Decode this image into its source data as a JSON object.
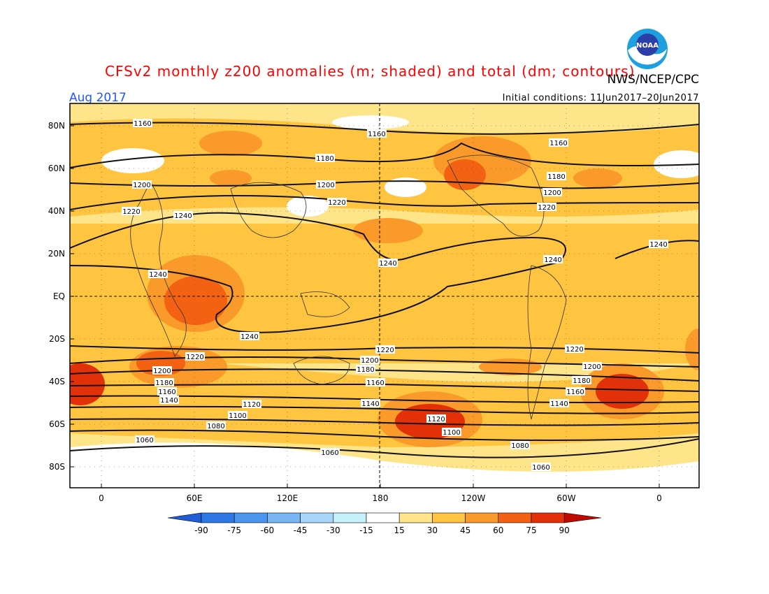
{
  "title": "CFSv2 monthly z200 anomalies (m; shaded) and total (dm; contours)",
  "valid_month": "Aug 2017",
  "initial_conditions": "Initial conditions: 11Jun2017–20Jun2017",
  "agency": "NWS/NCEP/CPC",
  "logo_text": "NOAA",
  "lat_labels": [
    "80N",
    "60N",
    "40N",
    "20N",
    "EQ",
    "20S",
    "40S",
    "60S",
    "80S"
  ],
  "lon_labels": [
    "0",
    "60E",
    "120E",
    "180",
    "120W",
    "60W",
    "0"
  ],
  "colorbar": {
    "labels": [
      "-90",
      "-75",
      "-60",
      "-45",
      "-30",
      "-15",
      "15",
      "30",
      "45",
      "60",
      "75",
      "90"
    ],
    "colors": [
      "#1f5fd6",
      "#2e78e6",
      "#4b95ee",
      "#78b6f5",
      "#a8d6fa",
      "#c6f0fa",
      "#ffffff",
      "#ffe58a",
      "#ffc440",
      "#fa9a2a",
      "#f26212",
      "#e23008",
      "#c00a00"
    ]
  },
  "contour_labels": [
    "1160",
    "1180",
    "1200",
    "1220",
    "1240",
    "1140",
    "1120",
    "1100",
    "1080",
    "1060"
  ]
}
